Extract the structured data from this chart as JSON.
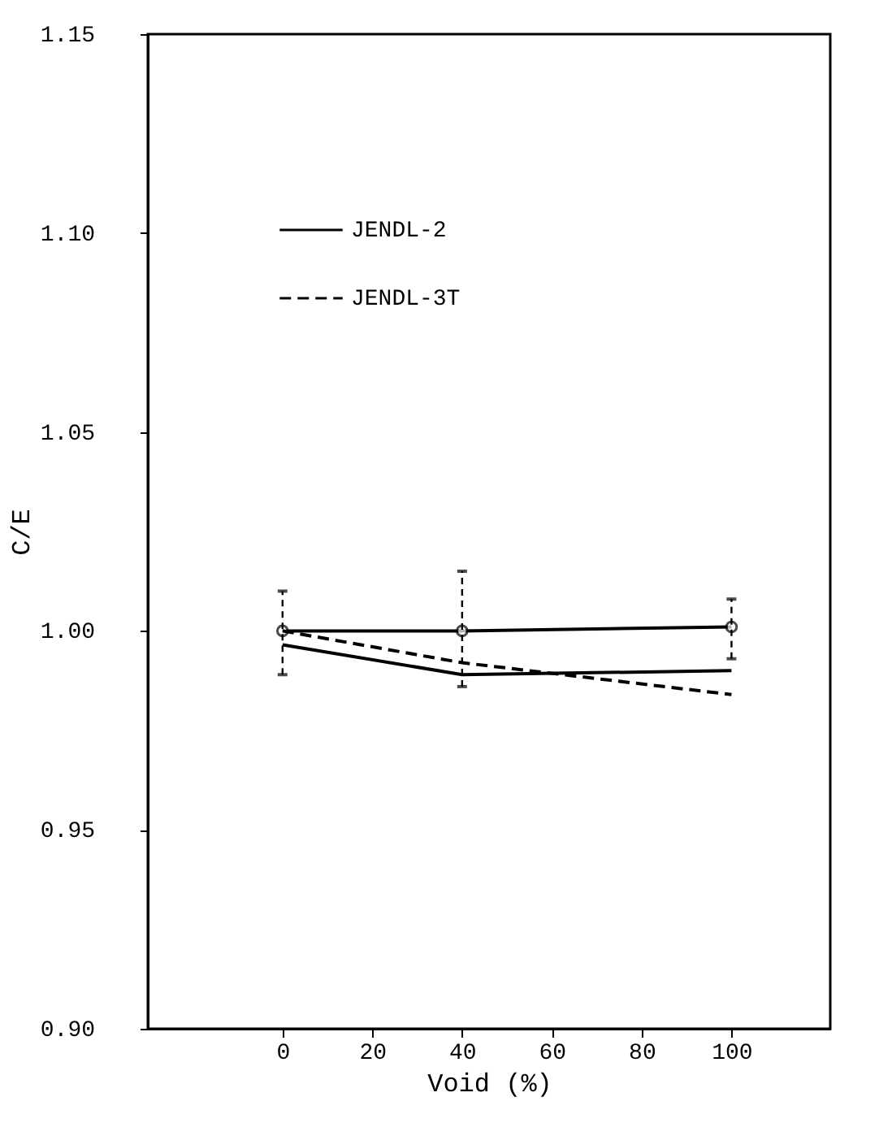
{
  "chart_data": {
    "type": "line",
    "xlabel": "Void (%)",
    "ylabel": "C/E",
    "x": [
      0,
      40,
      100
    ],
    "series": [
      {
        "color": "#000000",
        "values": [
          1.0,
          1.0,
          1.001
        ],
        "errors": [
          [
            0.989,
            1.01
          ],
          [
            0.986,
            1.015
          ],
          [
            0.993,
            1.008
          ]
        ],
        "marker": "circle",
        "line_style": "solid"
      },
      {
        "name": "JENDL-2",
        "color": "#000000",
        "values": [
          0.9965,
          0.989,
          0.99
        ],
        "line_style": "solid"
      },
      {
        "name": "JENDL-3T",
        "color": "#000000",
        "values": [
          1.0,
          0.992,
          0.984
        ],
        "line_style": "dashed"
      }
    ],
    "xlim": [
      -30,
      122
    ],
    "xticks": [
      0,
      20,
      40,
      60,
      80,
      100
    ],
    "ylim": [
      0.9,
      1.15
    ],
    "yticks": [
      {
        "value": 0.9,
        "label": "0.90"
      },
      {
        "value": 0.95,
        "label": "0.95"
      },
      {
        "value": 1.0,
        "label": "1.00"
      },
      {
        "value": 1.05,
        "label": "1.05"
      },
      {
        "value": 1.1,
        "label": "1.10"
      },
      {
        "value": 1.15,
        "label": "1.15"
      }
    ],
    "grid": false,
    "legend": "top left"
  }
}
